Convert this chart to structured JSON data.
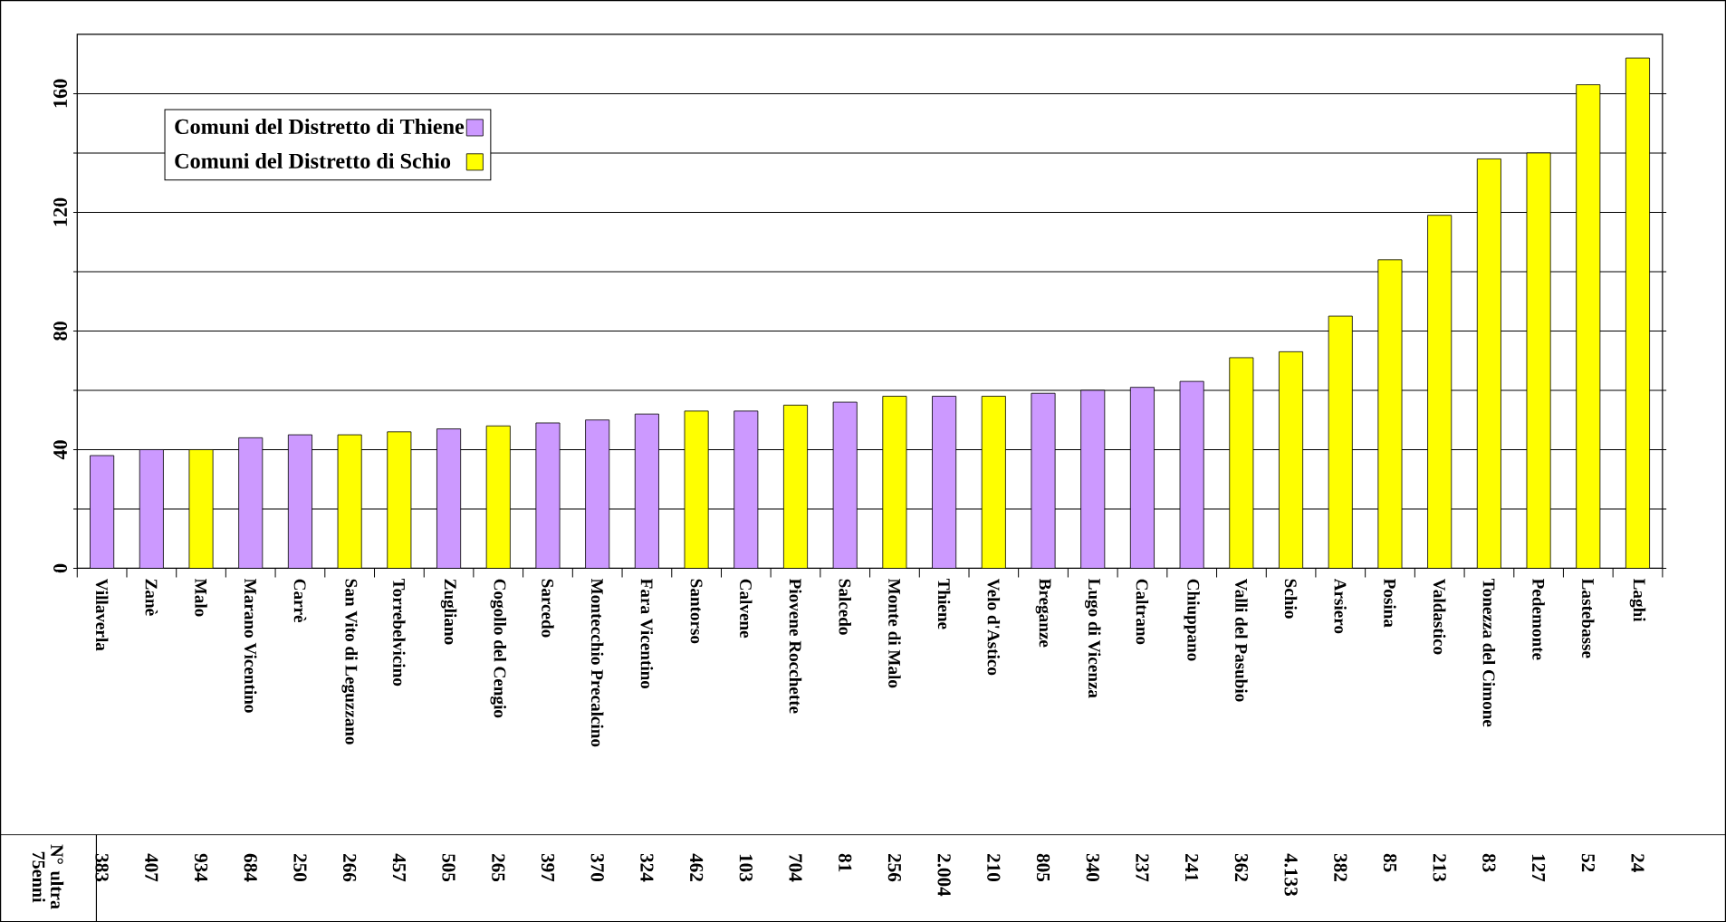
{
  "chart_data": {
    "type": "bar",
    "categories": [
      "Villaverla",
      "Zanè",
      "Malo",
      "Marano Vicentino",
      "Carrè",
      "San Vito di Leguzzano",
      "Torrebelvicino",
      "Zugliano",
      "Cogollo del Cengio",
      "Sarcedo",
      "Montecchio Precalcino",
      "Fara Vicentino",
      "Santorso",
      "Calvene",
      "Piovene Rocchette",
      "Salcedo",
      "Monte di Malo",
      "Thiene",
      "Velo d'Astico",
      "Breganze",
      "Lugo di Vicenza",
      "Caltrano",
      "Chiuppano",
      "Valli del Pasubio",
      "Schio",
      "Arsiero",
      "Posina",
      "Valdastico",
      "Tonezza del Cimone",
      "Pedemonte",
      "Lastebasse",
      "Laghi"
    ],
    "series": [
      {
        "name": "Comuni del Distretto di Thiene",
        "color": "#cc99ff",
        "values": [
          38,
          40,
          null,
          44,
          45,
          null,
          null,
          47,
          null,
          49,
          50,
          52,
          null,
          53,
          null,
          56,
          null,
          58,
          null,
          59,
          60,
          61,
          63,
          null,
          null,
          null,
          null,
          null,
          null,
          null,
          null,
          null
        ]
      },
      {
        "name": "Comuni del Distretto di Schio",
        "color": "#ffff00",
        "values": [
          null,
          null,
          40,
          null,
          null,
          45,
          46,
          null,
          48,
          null,
          null,
          null,
          53,
          null,
          55,
          null,
          58,
          null,
          58,
          null,
          null,
          null,
          null,
          71,
          73,
          85,
          104,
          119,
          138,
          140,
          163,
          172
        ]
      }
    ],
    "ylim": [
      0,
      180
    ],
    "yticks": [
      0,
      {
        "value": 20,
        "label": null
      },
      40,
      {
        "value": 60,
        "label": null
      },
      80,
      {
        "value": 100,
        "label": null
      },
      120,
      {
        "value": 140,
        "label": null
      },
      160
    ],
    "grid": "y",
    "legend": "top left",
    "annotations": [
      "N° ultra 75enni",
      "383",
      "407",
      "934",
      "684",
      "250",
      "266",
      "457",
      "505",
      "265",
      "397",
      "370",
      "324",
      "462",
      "103",
      "704",
      "81",
      "256",
      "2.004",
      "210",
      "805",
      "340",
      "237",
      "241",
      "362",
      "4.133",
      "382",
      "85",
      "213",
      "83",
      "127",
      "52",
      "24"
    ]
  }
}
